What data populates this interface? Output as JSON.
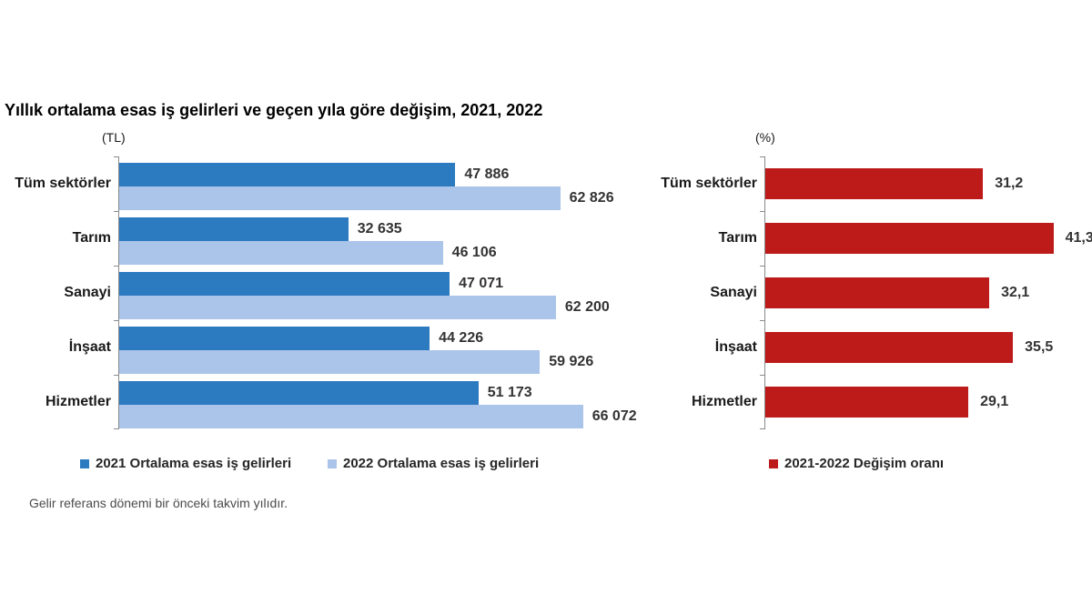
{
  "page": {
    "title": "Yıllık ortalama esas iş gelirleri ve geçen yıla göre değişim, 2021, 2022",
    "footnote": "Gelir referans dönemi bir önceki takvim yılıdır."
  },
  "legends": {
    "income_2021": "2021 Ortalama esas iş gelirleri",
    "income_2022": "2022 Ortalama esas iş gelirleri",
    "change": "2021-2022 Değişim oranı"
  },
  "colors": {
    "blue_2021": "#2c7ac0",
    "blue_2022": "#abc4e9",
    "red_change": "#bd1a1a",
    "axis": "#8a8a8a"
  },
  "chart_data": [
    {
      "type": "bar",
      "orientation": "horizontal",
      "title": "Yıllık ortalama esas iş gelirleri (TL)",
      "unit_label": "(TL)",
      "categories": [
        "Tüm sektörler",
        "Tarım",
        "Sanayi",
        "İnşaat",
        "Hizmetler"
      ],
      "xlim": [
        0,
        70000
      ],
      "grid": false,
      "legend_position": "bottom",
      "series": [
        {
          "name": "2021 Ortalama esas iş gelirleri",
          "color": "#2c7ac0",
          "values": [
            47886,
            32635,
            47071,
            44226,
            51173
          ],
          "labels": [
            "47 886",
            "32 635",
            "47 071",
            "44 226",
            "51 173"
          ]
        },
        {
          "name": "2022 Ortalama esas iş gelirleri",
          "color": "#abc4e9",
          "values": [
            62826,
            46106,
            62200,
            59926,
            66072
          ],
          "labels": [
            "62 826",
            "46 106",
            "62 200",
            "59 926",
            "66 072"
          ]
        }
      ]
    },
    {
      "type": "bar",
      "orientation": "horizontal",
      "title": "Geçen yıla göre değişim (%)",
      "unit_label": "(%)",
      "categories": [
        "Tüm sektörler",
        "Tarım",
        "Sanayi",
        "İnşaat",
        "Hizmetler"
      ],
      "xlim": [
        0,
        45
      ],
      "grid": false,
      "legend_position": "bottom",
      "series": [
        {
          "name": "2021-2022 Değişim oranı",
          "color": "#bd1a1a",
          "values": [
            31.2,
            41.3,
            32.1,
            35.5,
            29.1
          ],
          "labels": [
            "31,2",
            "41,3",
            "32,1",
            "35,5",
            "29,1"
          ]
        }
      ]
    }
  ]
}
